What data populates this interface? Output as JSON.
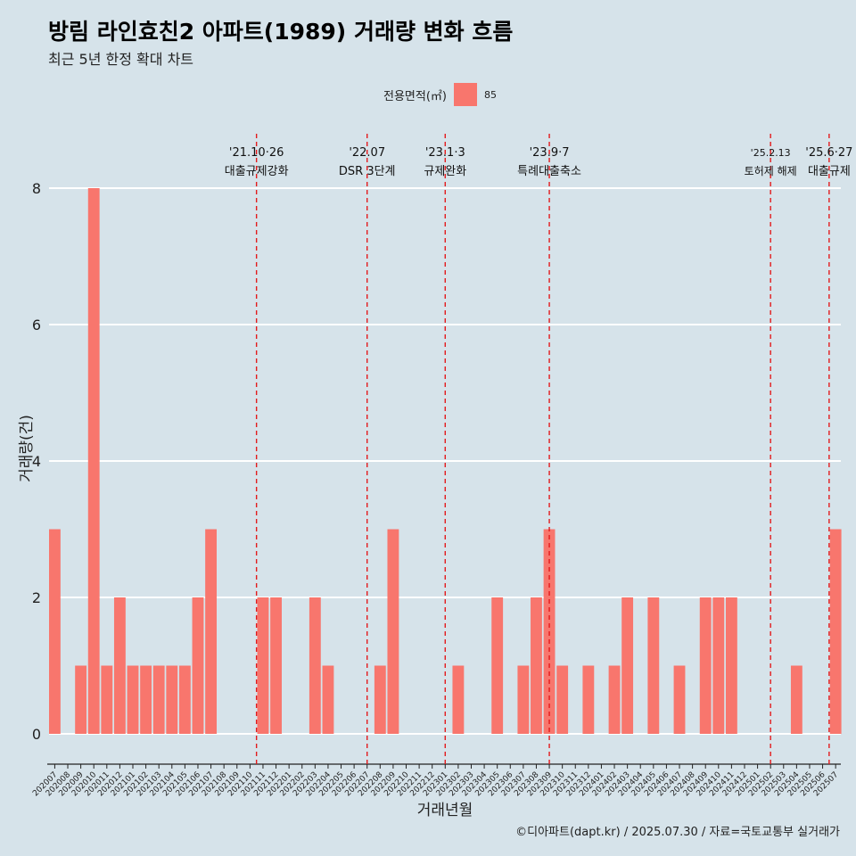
{
  "title": "방림 라인효친2 아파트(1989) 거래량 변화 흐름",
  "subtitle": "최근 5년 한정 확대 차트",
  "legend": {
    "title": "전용면적(㎡)",
    "item": "85"
  },
  "caption": "©디아파트(dapt.kr) / 2025.07.30 / 자료=국토교통부 실거래가",
  "colors": {
    "background": "#d6e3ea",
    "bar": "#f8766d",
    "event_line": "#e31a1c",
    "grid": "#ffffff"
  },
  "chart_data": {
    "type": "bar",
    "title": "방림 라인효친2 아파트(1989) 거래량 변화 흐름",
    "subtitle": "최근 5년 한정 확대 차트",
    "xlabel": "거래년월",
    "ylabel": "거래량(건)",
    "ylim": [
      0,
      8
    ],
    "yticks": [
      0,
      2,
      4,
      6,
      8
    ],
    "grid": "horizontal",
    "legend_position": "top",
    "categories": [
      "202007",
      "202008",
      "202009",
      "202010",
      "202011",
      "202012",
      "202101",
      "202102",
      "202103",
      "202104",
      "202105",
      "202106",
      "202107",
      "202108",
      "202109",
      "202110",
      "202111",
      "202112",
      "202201",
      "202202",
      "202203",
      "202204",
      "202205",
      "202206",
      "202207",
      "202208",
      "202209",
      "202210",
      "202211",
      "202212",
      "202301",
      "202302",
      "202303",
      "202304",
      "202305",
      "202306",
      "202307",
      "202308",
      "202309",
      "202310",
      "202311",
      "202312",
      "202401",
      "202402",
      "202403",
      "202404",
      "202405",
      "202406",
      "202407",
      "202408",
      "202409",
      "202410",
      "202411",
      "202412",
      "202501",
      "202502",
      "202503",
      "202504",
      "202505",
      "202506",
      "202507"
    ],
    "series": [
      {
        "name": "85",
        "values": [
          3,
          0,
          1,
          8,
          1,
          2,
          1,
          1,
          1,
          1,
          1,
          2,
          3,
          0,
          0,
          0,
          2,
          2,
          0,
          0,
          2,
          1,
          0,
          0,
          0,
          1,
          3,
          0,
          0,
          0,
          0,
          1,
          0,
          0,
          2,
          0,
          1,
          2,
          3,
          1,
          0,
          1,
          0,
          1,
          2,
          0,
          2,
          0,
          1,
          0,
          2,
          2,
          2,
          0,
          0,
          0,
          0,
          1,
          0,
          0,
          3
        ]
      }
    ],
    "events": [
      {
        "date_label": "'21.10·26",
        "text": "대출규제강화",
        "category": "202110",
        "offset": 0.5
      },
      {
        "date_label": "'22.07",
        "text": "DSR 3단계",
        "category": "202207",
        "offset": 0.0
      },
      {
        "date_label": "'23.1·3",
        "text": "규제완화",
        "category": "202301",
        "offset": 0.0
      },
      {
        "date_label": "'23.9·7",
        "text": "특례대출축소",
        "category": "202309",
        "offset": 0.0
      },
      {
        "date_label": "'25.2.13",
        "text": "토허제 해제",
        "category": "202502",
        "offset": 0.0
      },
      {
        "date_label": "'25.6·27",
        "text": "대출규제",
        "category": "202506",
        "offset": 0.5
      }
    ]
  }
}
